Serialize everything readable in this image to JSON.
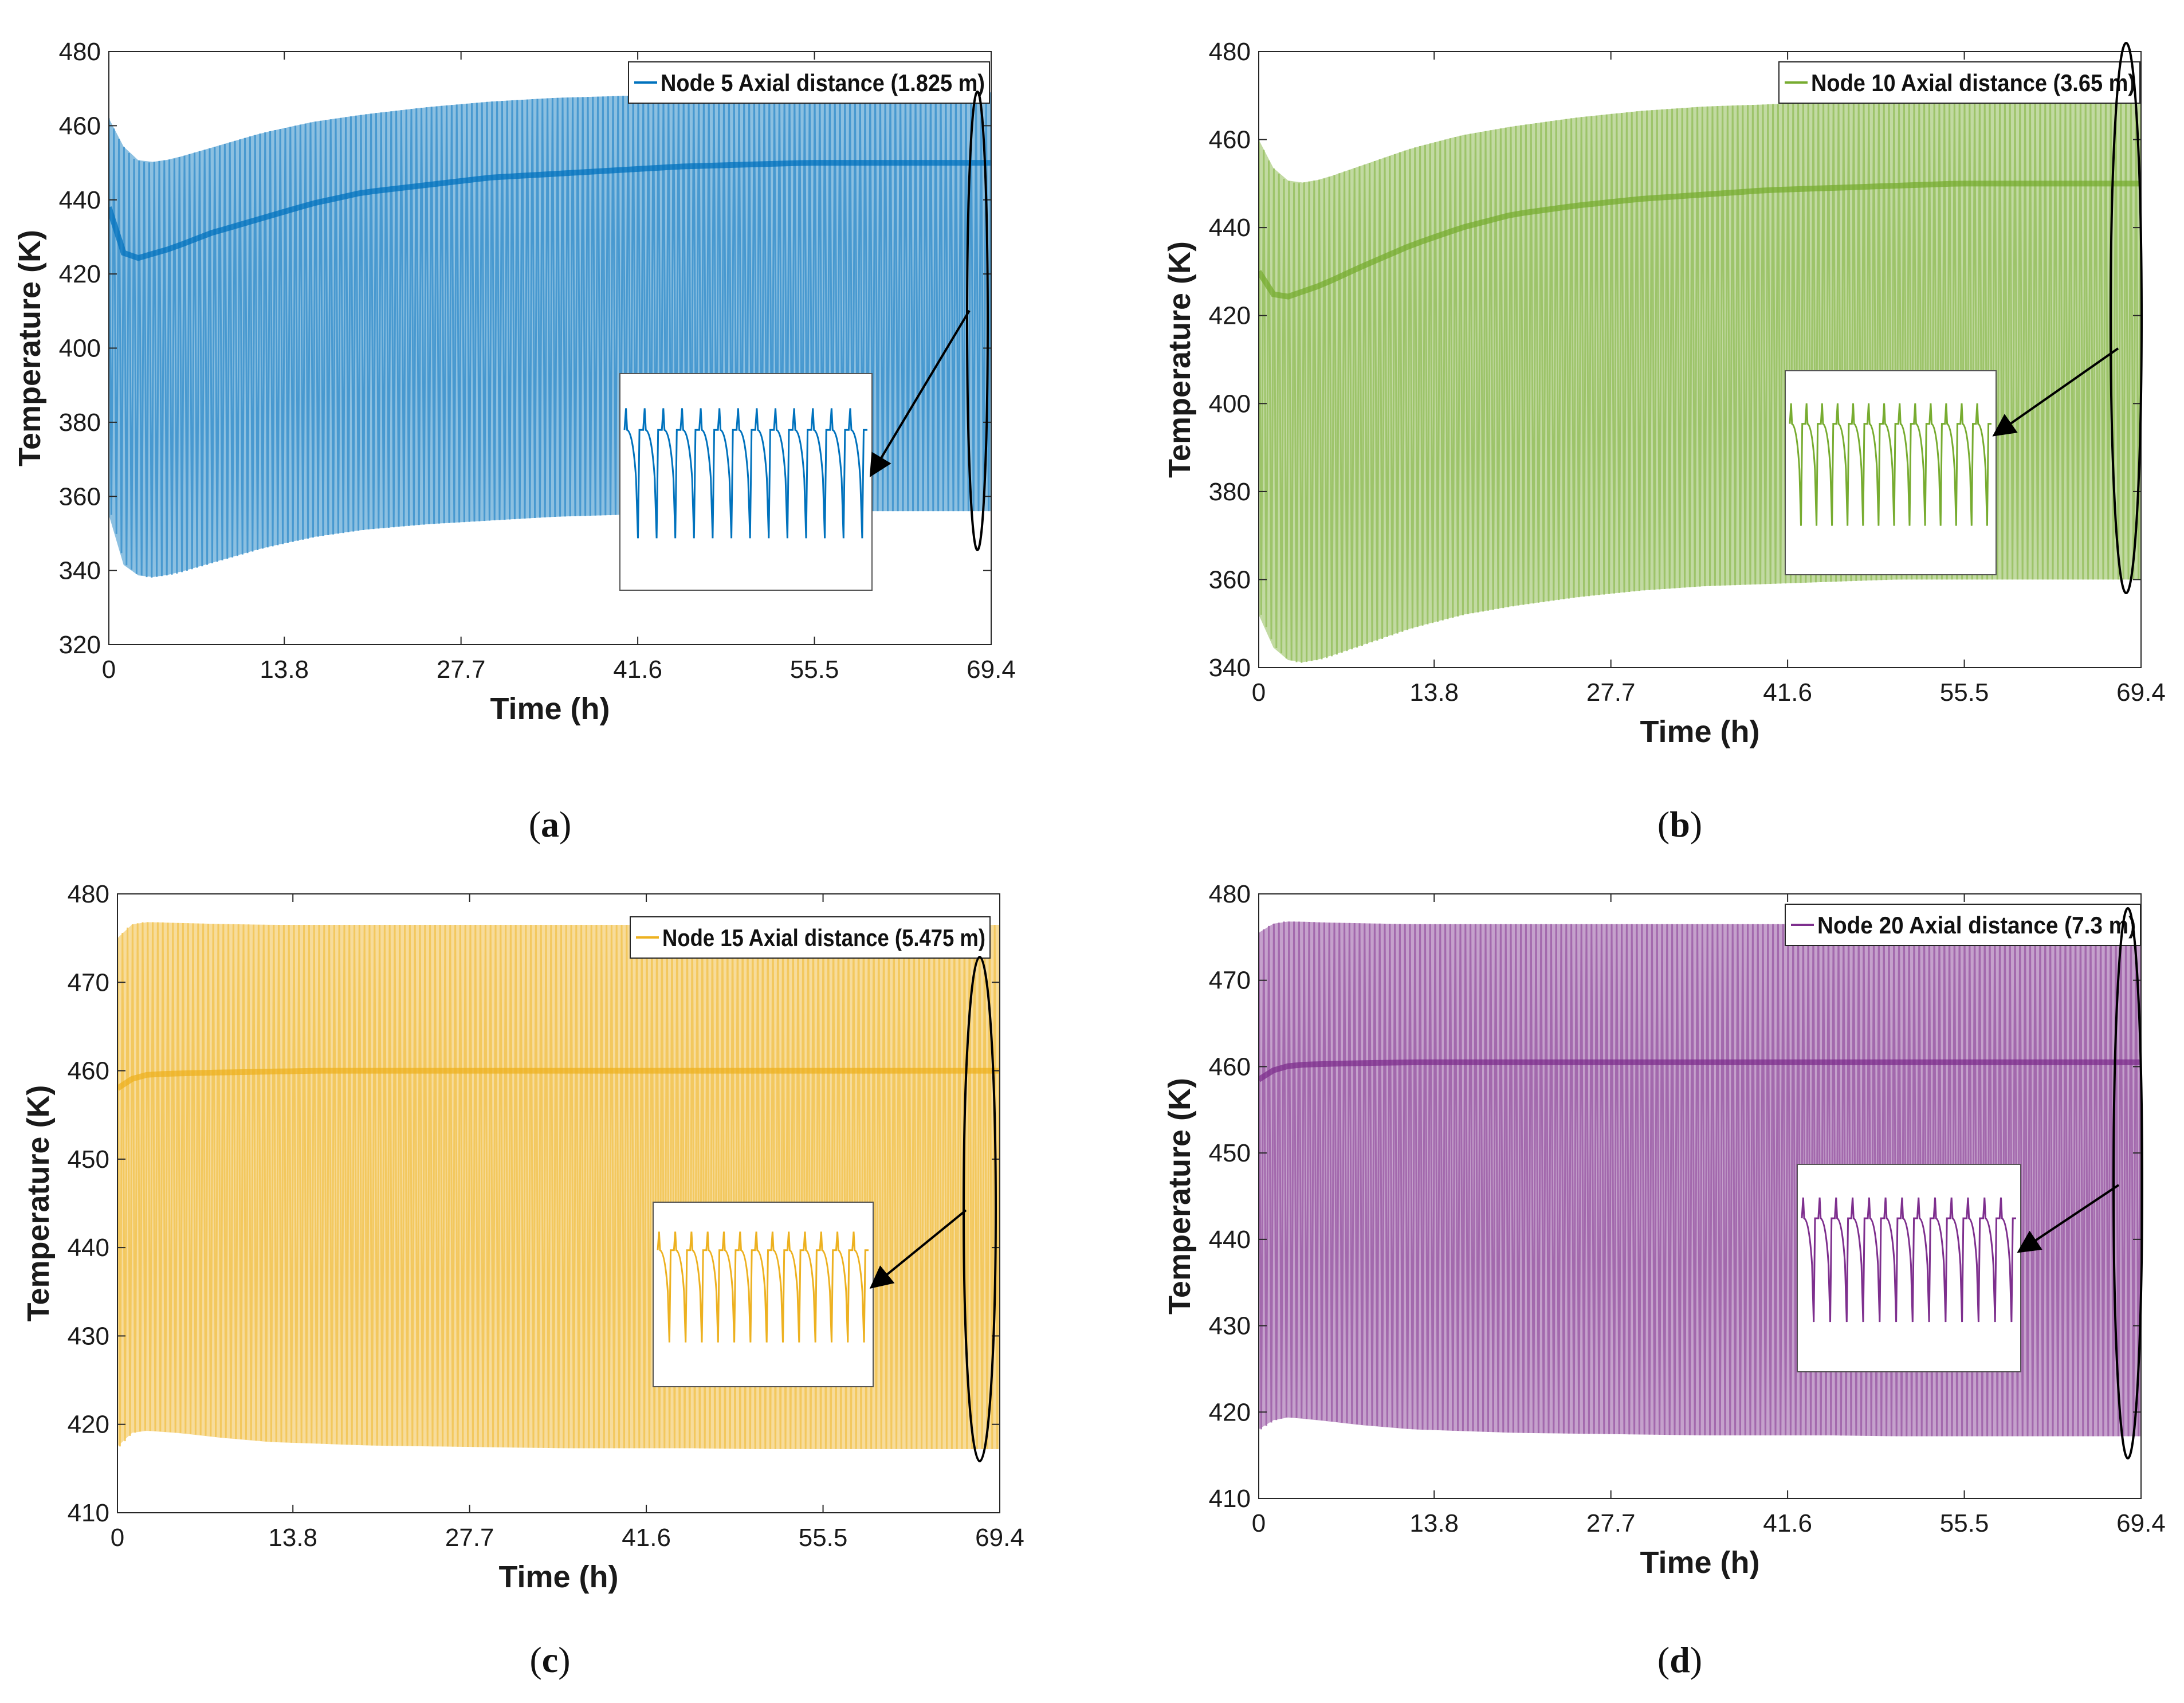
{
  "chart_data": [
    {
      "type": "line",
      "panel": "a",
      "xlabel": "Time (h)",
      "ylabel": "Temperature (K)",
      "xlim": [
        0,
        69.4
      ],
      "ylim": [
        320,
        480
      ],
      "xticks": [
        0,
        13.8,
        27.7,
        41.6,
        55.5,
        69.4
      ],
      "yticks": [
        320,
        340,
        360,
        380,
        400,
        420,
        440,
        460,
        480
      ],
      "xtick_labels": [
        "0",
        "13.8",
        "27.7",
        "41.6",
        "55.5",
        "69.4"
      ],
      "ytick_labels": [
        "320",
        "340",
        "360",
        "380",
        "400",
        "420",
        "440",
        "460",
        "480"
      ],
      "series": [
        {
          "name": "Node 5 Axial distance (1.825 m)",
          "color": "#0072BD",
          "envelope": {
            "time": [
              0,
              1,
              2,
              3,
              5,
              8,
              12,
              16,
              20,
              25,
              30,
              35,
              40,
              45,
              50,
              55,
              60,
              65,
              69.4
            ],
            "upper": [
              462,
              455,
              451,
              450,
              451,
              454,
              458,
              461,
              463,
              465,
              466.5,
              467.5,
              468,
              468.5,
              469,
              469,
              469,
              469,
              469
            ],
            "lower": [
              355,
              342,
              339,
              338,
              339,
              342,
              346,
              349,
              351,
              352.5,
              353.5,
              354.5,
              355,
              355.5,
              356,
              356,
              356,
              356,
              356
            ],
            "dense_band": [
              438,
              426,
              424,
              425,
              427,
              431,
              435,
              439,
              442,
              444,
              446,
              447,
              448,
              449,
              449.5,
              450,
              450,
              450,
              450
            ]
          }
        }
      ],
      "inset": "zoomed oscillation detail"
    },
    {
      "type": "line",
      "panel": "b",
      "xlabel": "Time (h)",
      "ylabel": "Temperature (K)",
      "xlim": [
        0,
        69.4
      ],
      "ylim": [
        340,
        480
      ],
      "xticks": [
        0,
        13.8,
        27.7,
        41.6,
        55.5,
        69.4
      ],
      "yticks": [
        340,
        360,
        380,
        400,
        420,
        440,
        460,
        480
      ],
      "xtick_labels": [
        "0",
        "13.8",
        "27.7",
        "41.6",
        "55.5",
        "69.4"
      ],
      "ytick_labels": [
        "340",
        "360",
        "380",
        "400",
        "420",
        "440",
        "460",
        "480"
      ],
      "series": [
        {
          "name": "Node 10 Axial distance (3.65 m)",
          "color": "#77AC30",
          "envelope": {
            "time": [
              0,
              1,
              2,
              3,
              5,
              8,
              12,
              16,
              20,
              25,
              30,
              35,
              40,
              45,
              50,
              55,
              60,
              65,
              69.4
            ],
            "upper": [
              460,
              454,
              451,
              450,
              451,
              454,
              458,
              461,
              463,
              465,
              466.5,
              467.5,
              468,
              468.5,
              469,
              469,
              469,
              469,
              469
            ],
            "lower": [
              352,
              345,
              342,
              341,
              342,
              345,
              349,
              352,
              354,
              356,
              357.5,
              358.5,
              359,
              359.5,
              360,
              360,
              360,
              360,
              360
            ],
            "dense_band": [
              430,
              425,
              424,
              425,
              427,
              431,
              436,
              440,
              443,
              445,
              446.5,
              447.5,
              448.5,
              449,
              449.5,
              450,
              450,
              450,
              450
            ]
          }
        }
      ],
      "inset": "zoomed oscillation detail"
    },
    {
      "type": "line",
      "panel": "c",
      "xlabel": "Time (h)",
      "ylabel": "Temperature (K)",
      "xlim": [
        0,
        69.4
      ],
      "ylim": [
        410,
        480
      ],
      "xticks": [
        0,
        13.8,
        27.7,
        41.6,
        55.5,
        69.4
      ],
      "yticks": [
        410,
        420,
        430,
        440,
        450,
        460,
        470,
        480
      ],
      "xtick_labels": [
        "0",
        "13.8",
        "27.7",
        "41.6",
        "55.5",
        "69.4"
      ],
      "ytick_labels": [
        "410",
        "420",
        "430",
        "440",
        "450",
        "460",
        "470",
        "480"
      ],
      "series": [
        {
          "name": "Node 15 Axial distance (5.475 m)",
          "color": "#EDB120",
          "envelope": {
            "time": [
              0,
              1,
              2,
              3,
              5,
              8,
              12,
              16,
              20,
              25,
              30,
              35,
              40,
              45,
              50,
              55,
              60,
              65,
              69.4
            ],
            "upper": [
              475,
              476.5,
              476.8,
              476.8,
              476.7,
              476.6,
              476.5,
              476.5,
              476.5,
              476.5,
              476.5,
              476.5,
              476.5,
              476.5,
              476.5,
              476.5,
              476.5,
              476.5,
              476.5
            ],
            "lower": [
              417.5,
              419,
              419.3,
              419.2,
              419,
              418.5,
              418,
              417.8,
              417.6,
              417.5,
              417.4,
              417.3,
              417.3,
              417.3,
              417.2,
              417.2,
              417.2,
              417.2,
              417.2
            ],
            "dense_band": [
              458,
              459,
              459.5,
              459.6,
              459.7,
              459.8,
              459.9,
              460,
              460,
              460,
              460,
              460,
              460,
              460,
              460,
              460,
              460,
              460,
              460
            ]
          }
        }
      ],
      "inset": "zoomed oscillation detail"
    },
    {
      "type": "line",
      "panel": "d",
      "xlabel": "Time (h)",
      "ylabel": "Temperature (K)",
      "xlim": [
        0,
        69.4
      ],
      "ylim": [
        410,
        480
      ],
      "xticks": [
        0,
        13.8,
        27.7,
        41.6,
        55.5,
        69.4
      ],
      "yticks": [
        410,
        420,
        430,
        440,
        450,
        460,
        470,
        480
      ],
      "xtick_labels": [
        "0",
        "13.8",
        "27.7",
        "41.6",
        "55.5",
        "69.4"
      ],
      "ytick_labels": [
        "410",
        "420",
        "430",
        "440",
        "450",
        "460",
        "470",
        "480"
      ],
      "series": [
        {
          "name": "Node 20 Axial distance (7.3 m)",
          "color": "#7E2F8E",
          "envelope": {
            "time": [
              0,
              1,
              2,
              3,
              5,
              8,
              12,
              16,
              20,
              25,
              30,
              35,
              40,
              45,
              50,
              55,
              60,
              65,
              69.4
            ],
            "upper": [
              475.5,
              476.5,
              476.8,
              476.8,
              476.7,
              476.6,
              476.5,
              476.5,
              476.5,
              476.5,
              476.5,
              476.5,
              476.5,
              476.5,
              476.5,
              476.5,
              476.5,
              476.5,
              476.5
            ],
            "lower": [
              418,
              419,
              419.4,
              419.3,
              419,
              418.5,
              418,
              417.8,
              417.6,
              417.5,
              417.4,
              417.3,
              417.3,
              417.3,
              417.2,
              417.2,
              417.2,
              417.2,
              417.2
            ],
            "dense_band": [
              458.5,
              459.5,
              460,
              460.2,
              460.3,
              460.4,
              460.5,
              460.5,
              460.5,
              460.5,
              460.5,
              460.5,
              460.5,
              460.5,
              460.5,
              460.5,
              460.5,
              460.5,
              460.5
            ]
          }
        }
      ],
      "inset": "zoomed oscillation detail"
    }
  ],
  "panel_labels": [
    {
      "open": "(",
      "letter": "a",
      "close": ")"
    },
    {
      "open": "(",
      "letter": "b",
      "close": ")"
    },
    {
      "open": "(",
      "letter": "c",
      "close": ")"
    },
    {
      "open": "(",
      "letter": "d",
      "close": ")"
    }
  ]
}
